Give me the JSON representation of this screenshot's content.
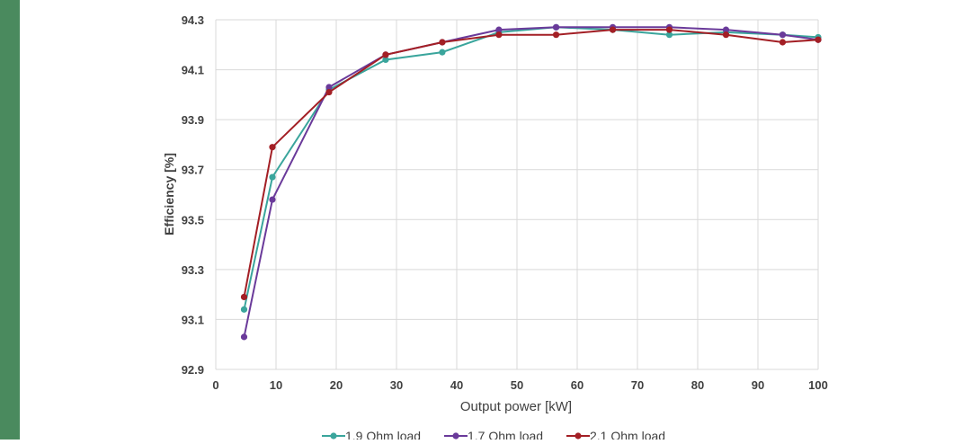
{
  "colors": {
    "sidebar": "#4a8a5e",
    "grid": "#d9d9d9",
    "axis_text": "#404040"
  },
  "chart_data": {
    "type": "line",
    "title": "",
    "xlabel": "Output power [kW]",
    "ylabel": "Efficiency [%]",
    "xlim": [
      0,
      100
    ],
    "ylim": [
      92.9,
      94.3
    ],
    "x_ticks": [
      0,
      10,
      20,
      30,
      40,
      50,
      60,
      70,
      80,
      90,
      100
    ],
    "y_ticks": [
      92.9,
      93.1,
      93.3,
      93.5,
      93.7,
      93.9,
      94.1,
      94.3
    ],
    "x_tick_labels": [
      "0",
      "10",
      "20",
      "30",
      "40",
      "50",
      "60",
      "70",
      "80",
      "90",
      "100"
    ],
    "y_tick_labels": [
      "92.9",
      "93.1",
      "93.3",
      "93.5",
      "93.7",
      "93.9",
      "94.1",
      "94.3"
    ],
    "grid": true,
    "legend_position": "bottom",
    "series": [
      {
        "name": "1.9 Ohm load",
        "color": "#3aa59c",
        "x": [
          4.7,
          9.4,
          18.8,
          28.2,
          37.6,
          47,
          56.5,
          65.9,
          75.3,
          84.7,
          94.1,
          100
        ],
        "y": [
          93.14,
          93.67,
          94.02,
          94.14,
          94.17,
          94.25,
          94.27,
          94.26,
          94.24,
          94.25,
          94.24,
          94.23
        ]
      },
      {
        "name": "1.7 Ohm load",
        "color": "#6a3a9a",
        "x": [
          4.7,
          9.4,
          18.8,
          28.2,
          37.6,
          47,
          56.5,
          65.9,
          75.3,
          84.7,
          94.1,
          100
        ],
        "y": [
          93.03,
          93.58,
          94.03,
          94.16,
          94.21,
          94.26,
          94.27,
          94.27,
          94.27,
          94.26,
          94.24,
          94.22
        ]
      },
      {
        "name": "2.1 Ohm load",
        "color": "#a31f25",
        "x": [
          4.7,
          9.4,
          18.8,
          28.2,
          37.6,
          47,
          56.5,
          65.9,
          75.3,
          84.7,
          94.1,
          100
        ],
        "y": [
          93.19,
          93.79,
          94.01,
          94.16,
          94.21,
          94.24,
          94.24,
          94.26,
          94.26,
          94.24,
          94.21,
          94.22
        ]
      }
    ]
  }
}
